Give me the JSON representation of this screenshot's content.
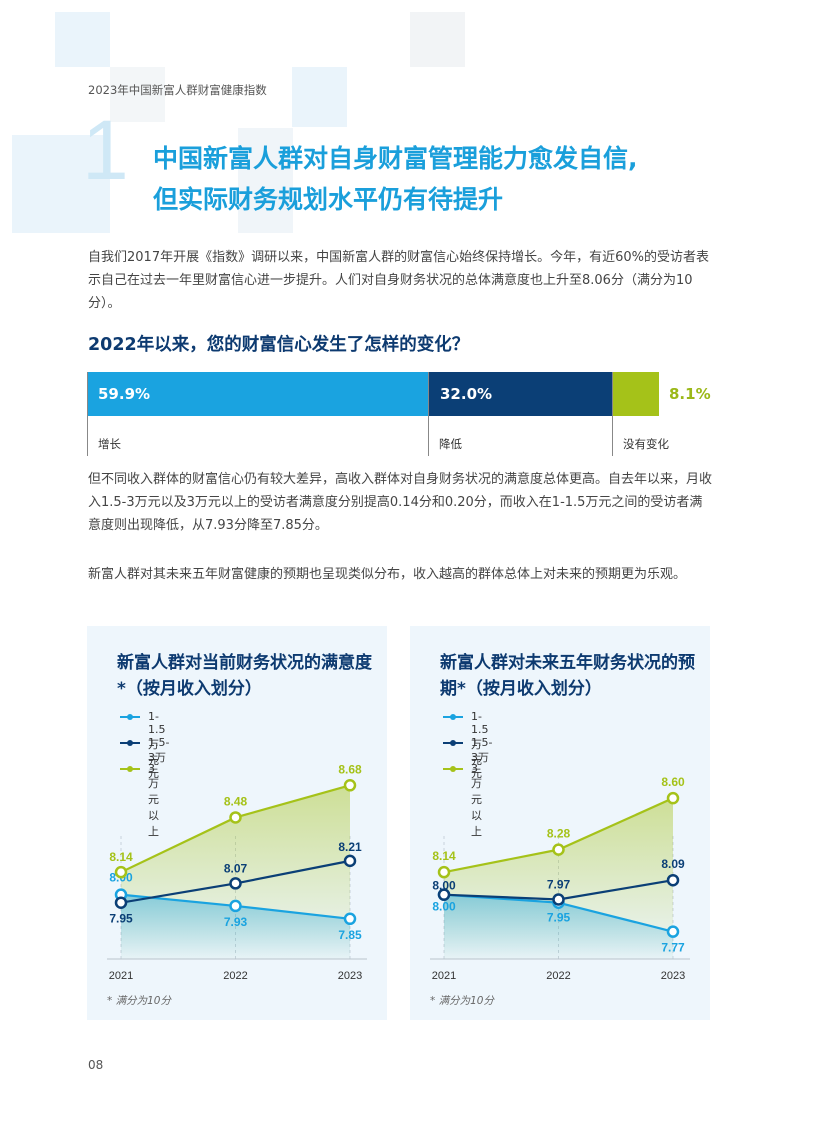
{
  "header": {
    "report_title": "2023年中国新富人群财富健康指数"
  },
  "section": {
    "number": "1",
    "title_line1": "中国新富人群对自身财富管理能力愈发自信,",
    "title_line2": "但实际财务规划水平仍有待提升"
  },
  "paragraphs": {
    "p1": "自我们2017年开展《指数》调研以来，中国新富人群的财富信心始终保持增长。今年，有近60%的受访者表示自己在过去一年里财富信心进一步提升。人们对自身财务状况的总体满意度也上升至8.06分（满分为10分）。",
    "p2": "但不同收入群体的财富信心仍有较大差异，高收入群体对自身财务状况的满意度总体更高。自去年以来，月收入1.5-3万元以及3万元以上的受访者满意度分别提高0.14分和0.20分，而收入在1-1.5万元之间的受访者满意度则出现降低，从7.93分降至7.85分。",
    "p3": "新富人群对其未来五年财富健康的预期也呈现类似分布，收入越高的群体总体上对未来的预期更为乐观。"
  },
  "confidence_question": "2022年以来，您的财富信心发生了怎样的变化？",
  "page_number": "08",
  "colors": {
    "light_blue": "#1aa3e0",
    "navy": "#0b3f76",
    "lime": "#a5c219",
    "title_blue": "#1a9fdb"
  },
  "chart_data": [
    {
      "type": "bar",
      "title": "2022年以来，您的财富信心发生了怎样的变化？",
      "categories": [
        "增长",
        "降低",
        "没有变化"
      ],
      "values": [
        59.9,
        32.0,
        8.1
      ],
      "value_labels": [
        "59.9%",
        "32.0%",
        "8.1%"
      ],
      "stacked": true
    },
    {
      "type": "line",
      "title": "新富人群对当前财务状况的满意度*（按月收入划分）",
      "x": [
        "2021",
        "2022",
        "2023"
      ],
      "series": [
        {
          "name": "1-1.5万元",
          "values": [
            8.0,
            7.93,
            7.85
          ],
          "labels": [
            "8.00",
            "7.93",
            "7.85"
          ],
          "color": "#1aa3e0"
        },
        {
          "name": "1.5-3万元",
          "values": [
            7.95,
            8.07,
            8.21
          ],
          "labels": [
            "7.95",
            "8.07",
            "8.21"
          ],
          "color": "#0b3f76"
        },
        {
          "name": "3万元以上",
          "values": [
            8.14,
            8.48,
            8.68
          ],
          "labels": [
            "8.14",
            "8.48",
            "8.68"
          ],
          "color": "#a5c219"
        }
      ],
      "ylim": [
        7.6,
        8.8
      ],
      "note": "* 满分为10分"
    },
    {
      "type": "line",
      "title": "新富人群对未来五年财务状况的预期*（按月收入划分）",
      "x": [
        "2021",
        "2022",
        "2023"
      ],
      "series": [
        {
          "name": "1-1.5万元",
          "values": [
            8.0,
            7.95,
            7.77
          ],
          "labels": [
            "8.00",
            "7.95",
            "7.77"
          ],
          "color": "#1aa3e0"
        },
        {
          "name": "1.5-3万元",
          "values": [
            8.0,
            7.97,
            8.09
          ],
          "labels": [
            "8.00",
            "7.97",
            "8.09"
          ],
          "color": "#0b3f76"
        },
        {
          "name": "3万元以上",
          "values": [
            8.14,
            8.28,
            8.6
          ],
          "labels": [
            "8.14",
            "8.28",
            "8.60"
          ],
          "color": "#a5c219"
        }
      ],
      "ylim": [
        7.6,
        8.8
      ],
      "note": "* 满分为10分"
    }
  ]
}
